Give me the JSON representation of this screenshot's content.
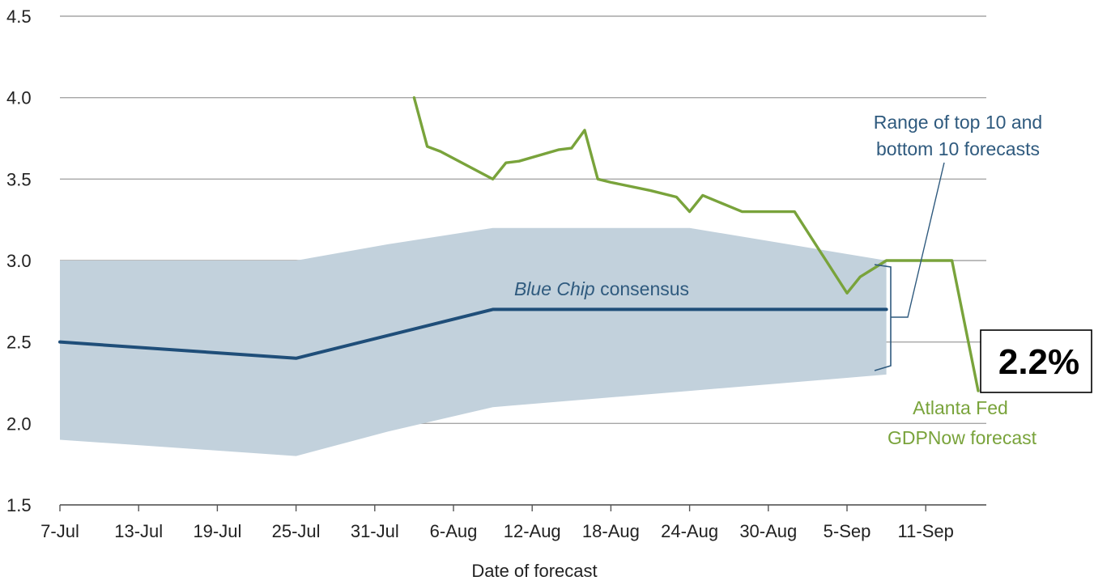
{
  "chart_data": {
    "type": "line",
    "title": "",
    "xlabel": "Date of forecast",
    "ylabel": "",
    "ylim": [
      1.5,
      4.5
    ],
    "yticks": [
      "1.5",
      "2.0",
      "2.5",
      "3.0",
      "3.5",
      "4.0",
      "4.5"
    ],
    "xticks": [
      "7-Jul",
      "13-Jul",
      "19-Jul",
      "25-Jul",
      "31-Jul",
      "6-Aug",
      "12-Aug",
      "18-Aug",
      "24-Aug",
      "30-Aug",
      "5-Sep",
      "11-Sep"
    ],
    "grid": "horizontal",
    "series": [
      {
        "name": "Blue Chip consensus",
        "color": "#1f4e79",
        "x": [
          "2017-07-07",
          "2017-07-25",
          "2017-08-09",
          "2017-09-08"
        ],
        "values": [
          2.5,
          2.4,
          2.7,
          2.7
        ]
      },
      {
        "name": "Atlanta Fed GDPNow forecast",
        "color": "#79a33b",
        "x": [
          "2017-08-03",
          "2017-08-04",
          "2017-08-05",
          "2017-08-09",
          "2017-08-10",
          "2017-08-11",
          "2017-08-14",
          "2017-08-15",
          "2017-08-16",
          "2017-08-17",
          "2017-08-18",
          "2017-08-21",
          "2017-08-23",
          "2017-08-24",
          "2017-08-25",
          "2017-08-28",
          "2017-08-31",
          "2017-09-01",
          "2017-09-05",
          "2017-09-06",
          "2017-09-08",
          "2017-09-13",
          "2017-09-15"
        ],
        "values": [
          4.0,
          3.7,
          3.67,
          3.5,
          3.6,
          3.61,
          3.68,
          3.69,
          3.8,
          3.5,
          3.48,
          3.43,
          3.39,
          3.3,
          3.4,
          3.3,
          3.3,
          3.3,
          2.8,
          2.9,
          3.0,
          3.0,
          2.2
        ]
      }
    ],
    "band": {
      "name": "Range of top 10 and bottom 10 forecasts",
      "color": "#c2d1dc",
      "x": [
        "2017-07-07",
        "2017-07-25",
        "2017-08-01",
        "2017-08-09",
        "2017-08-24",
        "2017-09-08"
      ],
      "upper": [
        3.0,
        3.0,
        3.1,
        3.2,
        3.2,
        3.0
      ],
      "lower": [
        1.9,
        1.8,
        1.95,
        2.1,
        2.2,
        2.3
      ]
    },
    "annotations": {
      "range_line1": "Range of top 10 and",
      "range_line2": "bottom 10 forecasts",
      "blue_chip_italic": "Blue Chip",
      "blue_chip_rest": " consensus",
      "gdpnow_line1": "Atlanta Fed",
      "gdpnow_line2": "GDPNow forecast",
      "callout": "2.2%"
    }
  }
}
